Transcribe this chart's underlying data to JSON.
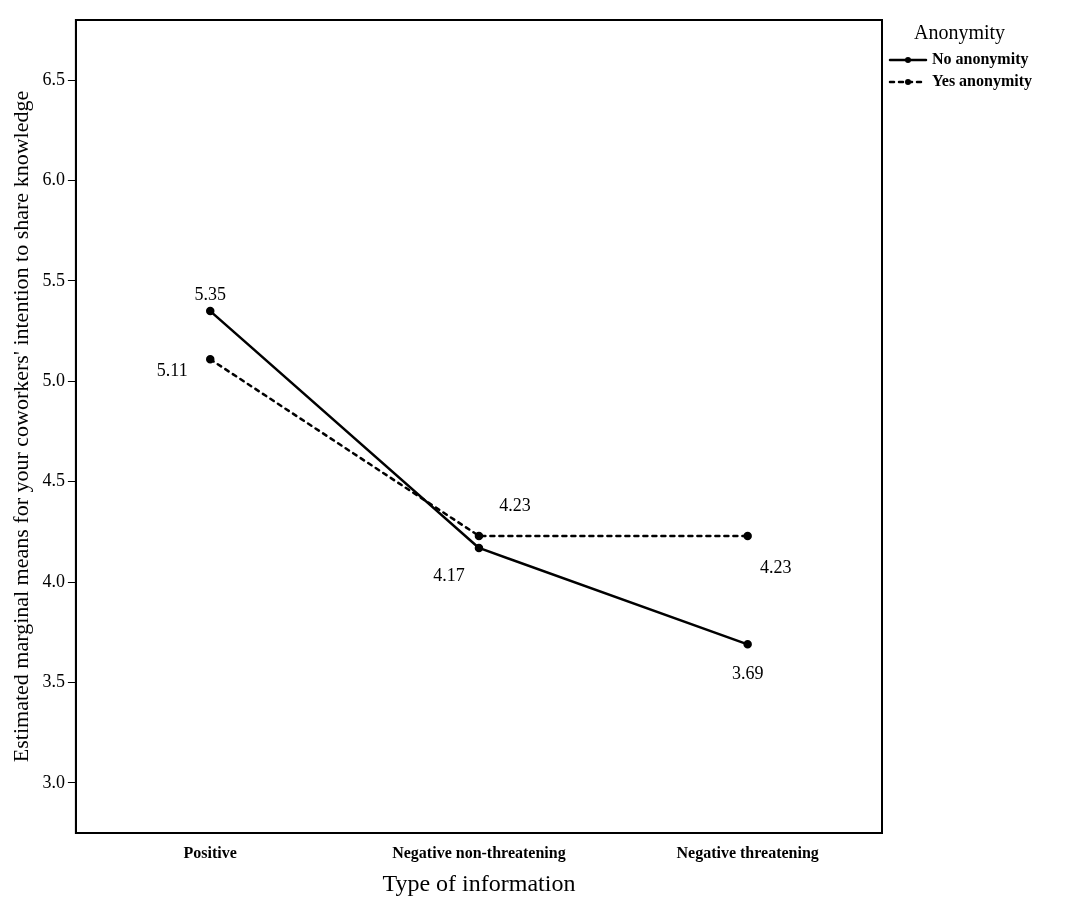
{
  "chart_data": {
    "type": "line",
    "xlabel": "Type of information",
    "ylabel": "Estimated marginal means for your coworkers' intention to share knowledge",
    "legend_title": "Anonymity",
    "legend": "top right",
    "categories": [
      "Positive",
      "Negative non-threatening",
      "Negative threatening"
    ],
    "series": [
      {
        "name": "No anonymity",
        "color": "#000000",
        "line_style": "solid",
        "values": [
          5.35,
          4.17,
          3.69
        ]
      },
      {
        "name": "Yes anonymity",
        "color": "#000000",
        "line_style": "dotted",
        "values": [
          5.11,
          4.23,
          4.23
        ]
      }
    ],
    "ylim": [
      2.75,
      6.8
    ],
    "yticks": [
      {
        "value": 3,
        "label": "3.0"
      },
      {
        "value": 3.5,
        "label": "3.5"
      },
      {
        "value": 4,
        "label": "4.0"
      },
      {
        "value": 4.5,
        "label": "4.5"
      },
      {
        "value": 5,
        "label": "5.0"
      },
      {
        "value": 5.5,
        "label": "5.5"
      },
      {
        "value": 6,
        "label": "6.0"
      },
      {
        "value": 6.5,
        "label": "6.5"
      }
    ],
    "grid": false,
    "marker": "circle",
    "data_labels": true
  }
}
